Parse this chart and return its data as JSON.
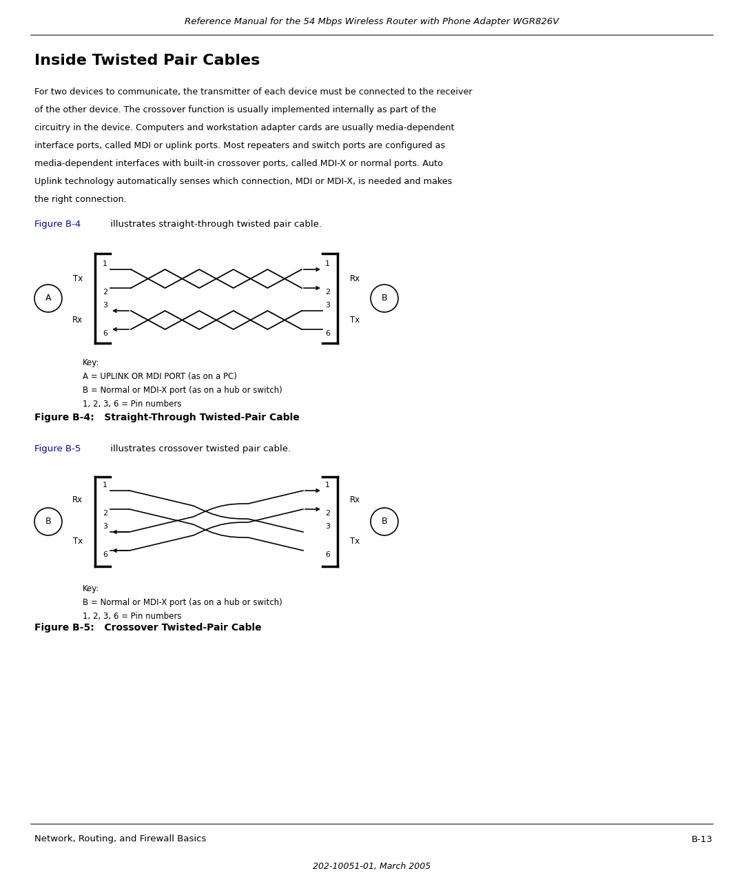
{
  "header_text": "Reference Manual for the 54 Mbps Wireless Router with Phone Adapter WGR826V",
  "section_title": "Inside Twisted Pair Cables",
  "body_line1": "For two devices to communicate, the transmitter of each device must be connected to the receiver",
  "body_line2": "of the other device. The crossover function is usually implemented internally as part of the",
  "body_line3": "circuitry in the device. Computers and workstation adapter cards are usually media-dependent",
  "body_line4": "interface ports, called MDI or uplink ports. Most repeaters and switch ports are configured as",
  "body_line5": "media-dependent interfaces with built-in crossover ports, called MDI-X or normal ports. Auto",
  "body_line6": "Uplink technology automatically senses which connection, MDI or MDI-X, is needed and makes",
  "body_line7": "the right connection.",
  "fig4_ref": "Figure B-4",
  "fig4_ref_text": " illustrates straight-through twisted pair cable.",
  "fig4_caption": "Figure B-4:   Straight-Through Twisted-Pair Cable",
  "fig4_key_line1": "Key:",
  "fig4_key_line2": "A = UPLINK OR MDI PORT (as on a PC)",
  "fig4_key_line3": "B = Normal or MDI-X port (as on a hub or switch)",
  "fig4_key_line4": "1, 2, 3, 6 = Pin numbers",
  "fig5_ref": "Figure B-5",
  "fig5_ref_text": " illustrates crossover twisted pair cable.",
  "fig5_caption": "Figure B-5:   Crossover Twisted-Pair Cable",
  "fig5_key_line1": "Key:",
  "fig5_key_line2": "B = Normal or MDI-X port (as on a hub or switch)",
  "fig5_key_line3": "1, 2, 3, 6 = Pin numbers",
  "footer_left": "Network, Routing, and Firewall Basics",
  "footer_right": "B-13",
  "footer_center": "202-10051-01, March 2005",
  "blue_color": "#0000CC",
  "black_color": "#000000",
  "gray_color": "#666666",
  "bg_color": "#FFFFFF"
}
